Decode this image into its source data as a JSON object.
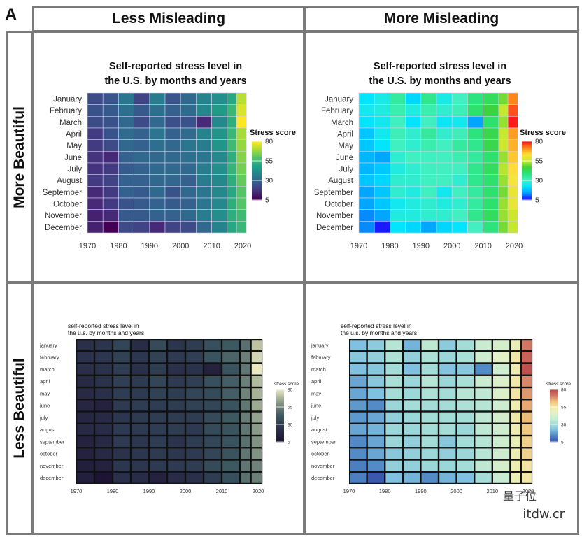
{
  "figure": {
    "panel_letter": "A",
    "col_headers": [
      "Less Misleading",
      "More Misleading"
    ],
    "row_headers": [
      "More Beautiful",
      "Less Beautiful"
    ],
    "watermark_1": "量子位",
    "watermark_2": "itdw.cr"
  },
  "chart_data": [
    {
      "type": "heatmap",
      "panel": "more-beautiful-less-misleading",
      "title": "Self-reported stress level in the U.S. by months and years",
      "legend_title": "Stress score",
      "legend_ticks": [
        "80",
        "55",
        "30",
        "5"
      ],
      "colormap": "viridis",
      "x": [
        1970,
        1975,
        1980,
        1985,
        1990,
        1995,
        2000,
        2005,
        2010,
        2015,
        2018
      ],
      "x_ticks": [
        "1970",
        "1980",
        "1990",
        "2000",
        "2010",
        "2020"
      ],
      "rows": [
        "January",
        "February",
        "March",
        "April",
        "May",
        "June",
        "July",
        "August",
        "September",
        "October",
        "November",
        "December"
      ],
      "values": [
        [
          22,
          25,
          34,
          20,
          36,
          25,
          30,
          38,
          42,
          50,
          72
        ],
        [
          24,
          26,
          32,
          26,
          32,
          28,
          31,
          40,
          46,
          55,
          76
        ],
        [
          22,
          24,
          30,
          22,
          30,
          23,
          24,
          14,
          40,
          52,
          80
        ],
        [
          18,
          24,
          31,
          28,
          34,
          28,
          31,
          38,
          44,
          55,
          70
        ],
        [
          18,
          22,
          30,
          28,
          32,
          30,
          34,
          36,
          44,
          56,
          68
        ],
        [
          16,
          14,
          28,
          30,
          30,
          30,
          32,
          34,
          40,
          52,
          66
        ],
        [
          16,
          18,
          26,
          28,
          30,
          30,
          30,
          36,
          42,
          54,
          64
        ],
        [
          18,
          20,
          28,
          28,
          30,
          30,
          28,
          36,
          40,
          52,
          62
        ],
        [
          14,
          18,
          28,
          26,
          30,
          24,
          30,
          34,
          40,
          50,
          60
        ],
        [
          14,
          18,
          24,
          26,
          28,
          26,
          28,
          34,
          40,
          52,
          60
        ],
        [
          12,
          14,
          26,
          26,
          28,
          28,
          30,
          36,
          42,
          52,
          56
        ],
        [
          12,
          5,
          22,
          20,
          14,
          20,
          22,
          30,
          38,
          50,
          55
        ]
      ]
    },
    {
      "type": "heatmap",
      "panel": "more-beautiful-more-misleading",
      "title": "Self-reported stress level in the U.S. by months and years",
      "legend_title": "Stress score",
      "legend_ticks": [
        "80",
        "55",
        "30",
        "5"
      ],
      "colormap": "rainbow",
      "x": [
        1970,
        1975,
        1980,
        1985,
        1990,
        1995,
        2000,
        2005,
        2010,
        2015,
        2018
      ],
      "x_ticks": [
        "1970",
        "1980",
        "1990",
        "2000",
        "2010",
        "2020"
      ],
      "rows": [
        "January",
        "February",
        "March",
        "April",
        "May",
        "June",
        "July",
        "August",
        "September",
        "October",
        "November",
        "December"
      ],
      "values": [
        [
          22,
          25,
          34,
          20,
          36,
          25,
          30,
          38,
          42,
          50,
          72
        ],
        [
          24,
          26,
          32,
          26,
          32,
          28,
          31,
          40,
          46,
          55,
          76
        ],
        [
          22,
          24,
          30,
          22,
          30,
          23,
          24,
          14,
          40,
          52,
          80
        ],
        [
          18,
          24,
          31,
          28,
          34,
          28,
          31,
          38,
          44,
          55,
          70
        ],
        [
          18,
          22,
          30,
          28,
          32,
          30,
          34,
          36,
          44,
          56,
          68
        ],
        [
          16,
          14,
          28,
          30,
          30,
          30,
          32,
          34,
          40,
          52,
          66
        ],
        [
          16,
          18,
          26,
          28,
          30,
          30,
          30,
          36,
          42,
          54,
          64
        ],
        [
          18,
          20,
          28,
          28,
          30,
          30,
          28,
          36,
          40,
          52,
          62
        ],
        [
          14,
          18,
          28,
          26,
          30,
          24,
          30,
          34,
          40,
          50,
          60
        ],
        [
          14,
          18,
          24,
          26,
          28,
          26,
          28,
          34,
          40,
          52,
          60
        ],
        [
          12,
          14,
          26,
          26,
          28,
          28,
          30,
          36,
          42,
          52,
          56
        ],
        [
          12,
          5,
          22,
          20,
          14,
          20,
          22,
          30,
          38,
          50,
          55
        ]
      ]
    },
    {
      "type": "heatmap",
      "panel": "less-beautiful-less-misleading",
      "title": "self-reported stress level in the u.s. by months and years",
      "legend_title": "stress score",
      "legend_ticks": [
        "80",
        "55",
        "30",
        "5"
      ],
      "colormap": "cubehelix",
      "x": [
        1970,
        1975,
        1980,
        1985,
        1990,
        1995,
        2000,
        2005,
        2010,
        2015,
        2018
      ],
      "x_ticks": [
        "1970",
        "1980",
        "1990",
        "2000",
        "2010",
        "2020"
      ],
      "rows": [
        "january",
        "february",
        "march",
        "april",
        "may",
        "june",
        "july",
        "august",
        "september",
        "october",
        "november",
        "december"
      ],
      "values": [
        [
          22,
          25,
          34,
          20,
          36,
          25,
          30,
          38,
          42,
          50,
          72
        ],
        [
          24,
          26,
          32,
          26,
          32,
          28,
          31,
          40,
          46,
          55,
          76
        ],
        [
          22,
          24,
          30,
          22,
          30,
          23,
          24,
          14,
          40,
          52,
          80
        ],
        [
          18,
          24,
          31,
          28,
          34,
          28,
          31,
          38,
          44,
          55,
          70
        ],
        [
          18,
          22,
          30,
          28,
          32,
          30,
          34,
          36,
          44,
          56,
          68
        ],
        [
          16,
          14,
          28,
          30,
          30,
          30,
          32,
          34,
          40,
          52,
          66
        ],
        [
          16,
          18,
          26,
          28,
          30,
          30,
          30,
          36,
          42,
          54,
          64
        ],
        [
          18,
          20,
          28,
          28,
          30,
          30,
          28,
          36,
          40,
          52,
          62
        ],
        [
          14,
          18,
          28,
          26,
          30,
          24,
          30,
          34,
          40,
          50,
          60
        ],
        [
          14,
          18,
          24,
          26,
          28,
          26,
          28,
          34,
          40,
          52,
          60
        ],
        [
          12,
          14,
          26,
          26,
          28,
          28,
          30,
          36,
          42,
          52,
          56
        ],
        [
          12,
          5,
          22,
          20,
          14,
          20,
          22,
          30,
          38,
          50,
          55
        ]
      ]
    },
    {
      "type": "heatmap",
      "panel": "less-beautiful-more-misleading",
      "title": "self-reported stress level in the u.s. by months and years",
      "legend_title": "stress score",
      "legend_ticks": [
        "80",
        "55",
        "30",
        "5"
      ],
      "colormap": "spectral",
      "x": [
        1970,
        1975,
        1980,
        1985,
        1990,
        1995,
        2000,
        2005,
        2010,
        2015,
        2018
      ],
      "x_ticks": [
        "1970",
        "1980",
        "1990",
        "2000",
        "2010",
        "2020"
      ],
      "rows": [
        "january",
        "february",
        "march",
        "april",
        "may",
        "june",
        "july",
        "august",
        "september",
        "october",
        "november",
        "december"
      ],
      "values": [
        [
          22,
          25,
          34,
          20,
          36,
          25,
          30,
          38,
          42,
          50,
          72
        ],
        [
          24,
          26,
          32,
          26,
          32,
          28,
          31,
          40,
          46,
          55,
          76
        ],
        [
          22,
          24,
          30,
          22,
          30,
          23,
          24,
          14,
          40,
          52,
          80
        ],
        [
          18,
          24,
          31,
          28,
          34,
          28,
          31,
          38,
          44,
          55,
          70
        ],
        [
          18,
          22,
          30,
          28,
          32,
          30,
          34,
          36,
          44,
          56,
          68
        ],
        [
          16,
          14,
          28,
          30,
          30,
          30,
          32,
          34,
          40,
          52,
          66
        ],
        [
          16,
          18,
          26,
          28,
          30,
          30,
          30,
          36,
          42,
          54,
          64
        ],
        [
          18,
          20,
          28,
          28,
          30,
          30,
          28,
          36,
          40,
          52,
          62
        ],
        [
          14,
          18,
          28,
          26,
          30,
          24,
          30,
          34,
          40,
          50,
          60
        ],
        [
          14,
          18,
          24,
          26,
          28,
          26,
          28,
          34,
          40,
          52,
          60
        ],
        [
          12,
          14,
          26,
          26,
          28,
          28,
          30,
          36,
          42,
          52,
          56
        ],
        [
          12,
          5,
          22,
          20,
          14,
          20,
          22,
          30,
          38,
          50,
          55
        ]
      ]
    }
  ]
}
